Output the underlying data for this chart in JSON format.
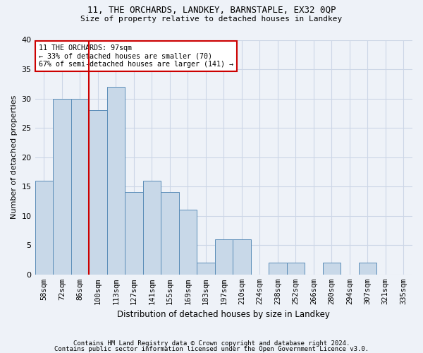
{
  "title1": "11, THE ORCHARDS, LANDKEY, BARNSTAPLE, EX32 0QP",
  "title2": "Size of property relative to detached houses in Landkey",
  "xlabel": "Distribution of detached houses by size in Landkey",
  "ylabel": "Number of detached properties",
  "categories": [
    "58sqm",
    "72sqm",
    "86sqm",
    "100sqm",
    "113sqm",
    "127sqm",
    "141sqm",
    "155sqm",
    "169sqm",
    "183sqm",
    "197sqm",
    "210sqm",
    "224sqm",
    "238sqm",
    "252sqm",
    "266sqm",
    "280sqm",
    "294sqm",
    "307sqm",
    "321sqm",
    "335sqm"
  ],
  "values": [
    16,
    30,
    30,
    28,
    32,
    14,
    16,
    14,
    11,
    2,
    6,
    6,
    0,
    2,
    2,
    0,
    2,
    0,
    2,
    0,
    0
  ],
  "bar_color": "#c8d8e8",
  "bar_edge_color": "#5b8db8",
  "vline_x": 2.5,
  "vline_color": "#cc0000",
  "annotation_text": "11 THE ORCHARDS: 97sqm\n← 33% of detached houses are smaller (70)\n67% of semi-detached houses are larger (141) →",
  "annotation_box_color": "#ffffff",
  "annotation_box_edge": "#cc0000",
  "footnote1": "Contains HM Land Registry data © Crown copyright and database right 2024.",
  "footnote2": "Contains public sector information licensed under the Open Government Licence v3.0.",
  "ylim": [
    0,
    40
  ],
  "yticks": [
    0,
    5,
    10,
    15,
    20,
    25,
    30,
    35,
    40
  ],
  "grid_color": "#ccd6e6",
  "background_color": "#eef2f8",
  "fig_width": 6.0,
  "fig_height": 5.0,
  "dpi": 100
}
